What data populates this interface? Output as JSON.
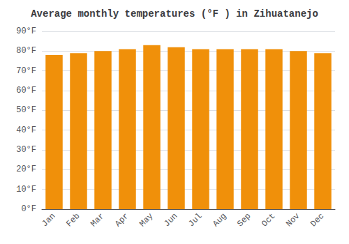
{
  "chart_data": {
    "type": "bar",
    "title": "Average monthly temperatures (°F ) in Zihuatanejo",
    "categories": [
      "Jan",
      "Feb",
      "Mar",
      "Apr",
      "May",
      "Jun",
      "Jul",
      "Aug",
      "Sep",
      "Oct",
      "Nov",
      "Dec"
    ],
    "values": [
      78,
      79,
      80,
      81,
      83,
      82,
      81,
      81,
      81,
      81,
      80,
      79
    ],
    "color": "#F0900A",
    "ylim": [
      0,
      90
    ],
    "yticks": [
      {
        "value": 0,
        "label": "0°F"
      },
      {
        "value": 10,
        "label": "10°F"
      },
      {
        "value": 20,
        "label": "20°F"
      },
      {
        "value": 30,
        "label": "30°F"
      },
      {
        "value": 40,
        "label": "40°F"
      },
      {
        "value": 50,
        "label": "50°F"
      },
      {
        "value": 60,
        "label": "60°F"
      },
      {
        "value": 70,
        "label": "70°F"
      },
      {
        "value": 80,
        "label": "80°F"
      },
      {
        "value": 90,
        "label": "90°F"
      }
    ],
    "grid": true
  }
}
